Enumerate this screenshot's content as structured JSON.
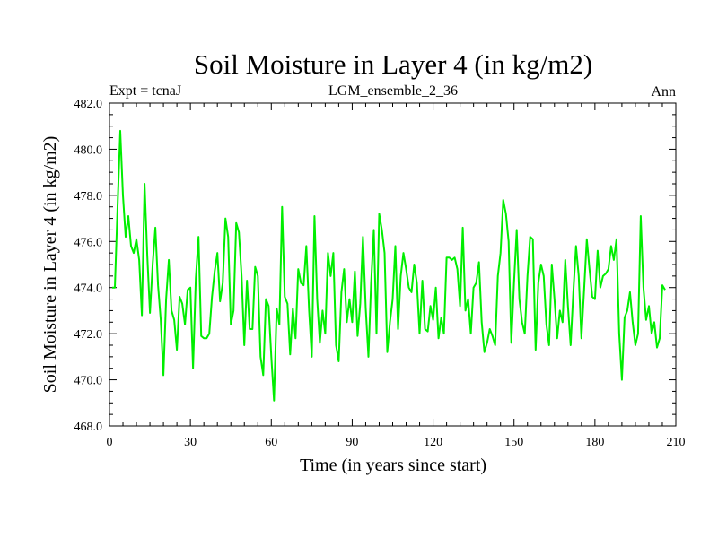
{
  "chart_data": {
    "type": "line",
    "title": "Soil Moisture in Layer 4 (in kg/m2)",
    "subtitle_left": "Expt = tcnaJ",
    "subtitle_center": "LGM_ensemble_2_36",
    "subtitle_right": "Ann",
    "xlabel": "Time (in years since start)",
    "ylabel": "Soil Moisture in Layer 4 (in kg/m2)",
    "xlim": [
      0,
      210
    ],
    "ylim": [
      468,
      482
    ],
    "xticks": [
      0,
      30,
      60,
      90,
      120,
      150,
      180,
      210
    ],
    "xtick_labels": [
      "0",
      "30",
      "60",
      "90",
      "120",
      "150",
      "180",
      "210"
    ],
    "yticks": [
      468,
      470,
      472,
      474,
      476,
      478,
      480,
      482
    ],
    "ytick_labels": [
      "468.0",
      "470.0",
      "472.0",
      "474.0",
      "476.0",
      "478.0",
      "480.0",
      "482.0"
    ],
    "series": [
      {
        "name": "Soil Moisture",
        "color": "#00ee00",
        "x_start": 1,
        "x_step": 1,
        "values": [
          474.0,
          474.0,
          477.5,
          480.8,
          478.0,
          476.2,
          477.1,
          475.8,
          475.5,
          476.1,
          475.2,
          472.8,
          478.5,
          475.4,
          472.9,
          475.0,
          476.6,
          474.1,
          472.6,
          470.2,
          473.5,
          475.2,
          473.0,
          472.6,
          471.3,
          473.6,
          473.3,
          472.4,
          473.9,
          474.0,
          470.5,
          474.4,
          476.2,
          471.9,
          471.8,
          471.8,
          472.0,
          473.6,
          474.7,
          475.5,
          473.4,
          474.2,
          477.0,
          476.2,
          472.4,
          473.0,
          476.8,
          476.4,
          474.5,
          471.5,
          474.3,
          472.2,
          472.2,
          474.9,
          474.5,
          471.0,
          470.2,
          473.5,
          473.2,
          471.0,
          469.1,
          473.1,
          472.4,
          477.5,
          473.6,
          473.3,
          471.1,
          473.1,
          471.8,
          474.8,
          474.2,
          474.1,
          475.8,
          473.0,
          471.0,
          477.1,
          473.5,
          471.6,
          473.0,
          472.0,
          475.5,
          474.5,
          475.5,
          471.5,
          470.8,
          473.8,
          474.8,
          472.5,
          473.5,
          472.5,
          474.7,
          471.9,
          473.3,
          476.2,
          473.1,
          471.0,
          474.2,
          476.5,
          472.0,
          477.2,
          476.5,
          475.5,
          471.2,
          472.5,
          473.5,
          475.8,
          472.2,
          474.5,
          475.5,
          474.8,
          474.0,
          473.8,
          475.0,
          474.2,
          472.0,
          474.3,
          472.2,
          472.1,
          473.2,
          472.6,
          474.0,
          471.8,
          472.7,
          472.0,
          475.3,
          475.3,
          475.2,
          475.3,
          474.8,
          473.2,
          476.6,
          473.0,
          473.5,
          472.0,
          474.0,
          474.2,
          475.1,
          472.5,
          471.2,
          471.6,
          472.2,
          471.9,
          471.5,
          474.5,
          475.5,
          477.8,
          477.2,
          476.0,
          471.6,
          474.2,
          476.5,
          473.5,
          472.5,
          472.0,
          474.5,
          476.2,
          476.1,
          471.3,
          474.2,
          475.0,
          474.5,
          472.4,
          471.5,
          475.0,
          473.5,
          471.8,
          473.0,
          472.5,
          475.2,
          473.2,
          471.5,
          473.8,
          475.8,
          474.5,
          471.8,
          473.9,
          476.1,
          474.8,
          473.6,
          473.5,
          475.6,
          474.0,
          474.5,
          474.6,
          474.8,
          475.8,
          475.2,
          476.1,
          472.0,
          470.0,
          472.7,
          473.0,
          473.8,
          472.5,
          471.5,
          472.0,
          477.1,
          474.0,
          472.6,
          473.2,
          472.0,
          472.5,
          471.4,
          471.8,
          474.1,
          473.9
        ]
      }
    ]
  }
}
